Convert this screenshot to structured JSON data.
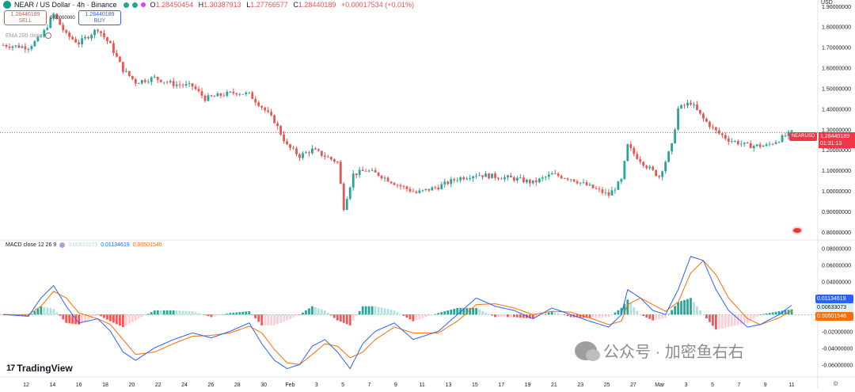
{
  "header": {
    "title": "NEAR / US Dollar · 4h · Binance",
    "ohlc": [
      {
        "label": "O",
        "value": "1.28450454"
      },
      {
        "label": "H",
        "value": "1.30387913"
      },
      {
        "label": "L",
        "value": "1.27766577"
      },
      {
        "label": "C",
        "value": "1.28440189"
      }
    ],
    "change": "+0.00017534 (+0.01%)"
  },
  "trade": {
    "sell_price": "1.28440189",
    "sell_label": "SELL",
    "buy_price": "1.28440189",
    "buy_label": "BUY",
    "spread": "0.00000000"
  },
  "ema_label": "EMA 200 close",
  "macd_legend": {
    "label": "MACD close 12 26 9",
    "v1": "0.00633073",
    "v2": "0.01134619",
    "v3": "0.00501546"
  },
  "price_axis": {
    "currency": "USD",
    "ticks": [
      "1.90000000",
      "1.80000000",
      "1.70000000",
      "1.60000000",
      "1.50000000",
      "1.40000000",
      "1.30000000",
      "1.20000000",
      "1.10000000",
      "1.00000000",
      "0.90000000",
      "0.80000000"
    ]
  },
  "macd_axis": {
    "ticks": [
      "0.08000000",
      "0.06000000",
      "0.04000000",
      "0.02000000",
      "0.00000000",
      "-0.02000000",
      "-0.04000000",
      "-0.06000000"
    ]
  },
  "current": {
    "symbol": "NEARUSD",
    "price": "1.28440189",
    "countdown": "01:31:13"
  },
  "macd_tags": {
    "macd": "0.01134619",
    "signal": "0.00633073",
    "hist": "0.00501546"
  },
  "time_axis": [
    "12",
    "14",
    "16",
    "18",
    "20",
    "22",
    "24",
    "26",
    "28",
    "30",
    "Feb",
    "3",
    "5",
    "7",
    "9",
    "11",
    "13",
    "15",
    "17",
    "19",
    "21",
    "23",
    "25",
    "27",
    "Mar",
    "3",
    "5",
    "7",
    "9",
    "11"
  ],
  "brand": {
    "name": "TradingView",
    "mark": "17"
  },
  "watermark": "公众号 · 加密鱼右右",
  "colors": {
    "up": "#26a69a",
    "down": "#ef5350",
    "macd": "#2962ff",
    "signal": "#ff6d00",
    "price": "#f23645"
  },
  "chart_data": [
    {
      "type": "candlestick",
      "title": "NEAR / US Dollar · 4h · Binance",
      "ylim": [
        0.78,
        1.93
      ],
      "x_ticks": [
        "12",
        "14",
        "16",
        "18",
        "20",
        "22",
        "24",
        "26",
        "28",
        "30",
        "Feb",
        "3",
        "5",
        "7",
        "9",
        "11",
        "13",
        "15",
        "17",
        "19",
        "21",
        "23",
        "25",
        "27",
        "Mar",
        "3",
        "5",
        "7",
        "9",
        "11"
      ],
      "close_path": [
        [
          0,
          1.71
        ],
        [
          8,
          1.7
        ],
        [
          12,
          1.75
        ],
        [
          16,
          1.86
        ],
        [
          20,
          1.76
        ],
        [
          24,
          1.72
        ],
        [
          30,
          1.79
        ],
        [
          34,
          1.71
        ],
        [
          38,
          1.59
        ],
        [
          42,
          1.53
        ],
        [
          48,
          1.55
        ],
        [
          54,
          1.52
        ],
        [
          60,
          1.51
        ],
        [
          64,
          1.45
        ],
        [
          70,
          1.47
        ],
        [
          74,
          1.48
        ],
        [
          78,
          1.47
        ],
        [
          82,
          1.41
        ],
        [
          86,
          1.34
        ],
        [
          90,
          1.22
        ],
        [
          94,
          1.17
        ],
        [
          98,
          1.2
        ],
        [
          102,
          1.17
        ],
        [
          106,
          1.14
        ],
        [
          108,
          0.92
        ],
        [
          111,
          1.08
        ],
        [
          115,
          1.1
        ],
        [
          119,
          1.08
        ],
        [
          125,
          1.03
        ],
        [
          131,
          0.99
        ],
        [
          138,
          1.02
        ],
        [
          144,
          1.06
        ],
        [
          150,
          1.08
        ],
        [
          156,
          1.07
        ],
        [
          162,
          1.06
        ],
        [
          168,
          1.04
        ],
        [
          174,
          1.08
        ],
        [
          180,
          1.06
        ],
        [
          186,
          1.02
        ],
        [
          192,
          0.98
        ],
        [
          196,
          1.05
        ],
        [
          198,
          1.22
        ],
        [
          200,
          1.18
        ],
        [
          204,
          1.12
        ],
        [
          208,
          1.07
        ],
        [
          212,
          1.22
        ],
        [
          214,
          1.4
        ],
        [
          218,
          1.43
        ],
        [
          222,
          1.35
        ],
        [
          226,
          1.29
        ],
        [
          230,
          1.25
        ],
        [
          236,
          1.22
        ],
        [
          242,
          1.22
        ],
        [
          246,
          1.25
        ],
        [
          250,
          1.2844
        ]
      ],
      "last": 1.28440189
    },
    {
      "type": "macd",
      "label": "MACD close 12 26 9",
      "ylim": [
        -0.075,
        0.085
      ],
      "macd_path": [
        [
          0,
          0.0
        ],
        [
          8,
          -0.002
        ],
        [
          12,
          0.02
        ],
        [
          16,
          0.035
        ],
        [
          20,
          0.01
        ],
        [
          24,
          -0.01
        ],
        [
          30,
          -0.005
        ],
        [
          34,
          -0.02
        ],
        [
          38,
          -0.045
        ],
        [
          42,
          -0.055
        ],
        [
          48,
          -0.04
        ],
        [
          54,
          -0.03
        ],
        [
          60,
          -0.022
        ],
        [
          66,
          -0.028
        ],
        [
          72,
          -0.02
        ],
        [
          78,
          -0.01
        ],
        [
          82,
          -0.035
        ],
        [
          86,
          -0.055
        ],
        [
          90,
          -0.065
        ],
        [
          94,
          -0.06
        ],
        [
          98,
          -0.038
        ],
        [
          102,
          -0.03
        ],
        [
          106,
          -0.045
        ],
        [
          110,
          -0.065
        ],
        [
          114,
          -0.035
        ],
        [
          118,
          -0.02
        ],
        [
          124,
          -0.01
        ],
        [
          130,
          -0.03
        ],
        [
          138,
          -0.02
        ],
        [
          144,
          0.0
        ],
        [
          150,
          0.02
        ],
        [
          156,
          0.01
        ],
        [
          162,
          0.005
        ],
        [
          168,
          -0.005
        ],
        [
          174,
          0.008
        ],
        [
          180,
          0.0
        ],
        [
          186,
          -0.008
        ],
        [
          192,
          -0.015
        ],
        [
          196,
          0.0
        ],
        [
          198,
          0.03
        ],
        [
          202,
          0.02
        ],
        [
          206,
          0.005
        ],
        [
          210,
          0.0
        ],
        [
          214,
          0.03
        ],
        [
          218,
          0.07
        ],
        [
          222,
          0.065
        ],
        [
          226,
          0.03
        ],
        [
          230,
          0.005
        ],
        [
          236,
          -0.015
        ],
        [
          240,
          -0.012
        ],
        [
          246,
          0.0
        ],
        [
          250,
          0.0113
        ]
      ],
      "signal_path": [
        [
          0,
          0.0
        ],
        [
          8,
          0.0
        ],
        [
          12,
          0.01
        ],
        [
          16,
          0.028
        ],
        [
          20,
          0.02
        ],
        [
          24,
          0.002
        ],
        [
          30,
          -0.005
        ],
        [
          34,
          -0.012
        ],
        [
          38,
          -0.03
        ],
        [
          42,
          -0.048
        ],
        [
          48,
          -0.045
        ],
        [
          54,
          -0.035
        ],
        [
          60,
          -0.026
        ],
        [
          66,
          -0.025
        ],
        [
          72,
          -0.022
        ],
        [
          78,
          -0.014
        ],
        [
          82,
          -0.022
        ],
        [
          86,
          -0.042
        ],
        [
          90,
          -0.058
        ],
        [
          94,
          -0.06
        ],
        [
          98,
          -0.048
        ],
        [
          102,
          -0.035
        ],
        [
          106,
          -0.038
        ],
        [
          110,
          -0.052
        ],
        [
          114,
          -0.045
        ],
        [
          118,
          -0.03
        ],
        [
          124,
          -0.015
        ],
        [
          130,
          -0.022
        ],
        [
          138,
          -0.022
        ],
        [
          144,
          -0.008
        ],
        [
          150,
          0.012
        ],
        [
          156,
          0.013
        ],
        [
          162,
          0.008
        ],
        [
          168,
          0.0
        ],
        [
          174,
          0.004
        ],
        [
          180,
          0.003
        ],
        [
          186,
          -0.004
        ],
        [
          192,
          -0.012
        ],
        [
          196,
          -0.008
        ],
        [
          198,
          0.012
        ],
        [
          202,
          0.02
        ],
        [
          206,
          0.012
        ],
        [
          210,
          0.004
        ],
        [
          214,
          0.015
        ],
        [
          218,
          0.05
        ],
        [
          222,
          0.065
        ],
        [
          226,
          0.048
        ],
        [
          230,
          0.02
        ],
        [
          236,
          -0.005
        ],
        [
          240,
          -0.012
        ],
        [
          246,
          -0.004
        ],
        [
          250,
          0.005
        ]
      ],
      "last_macd": 0.01134619,
      "last_signal": 0.00633073,
      "last_hist": 0.00501546
    }
  ]
}
